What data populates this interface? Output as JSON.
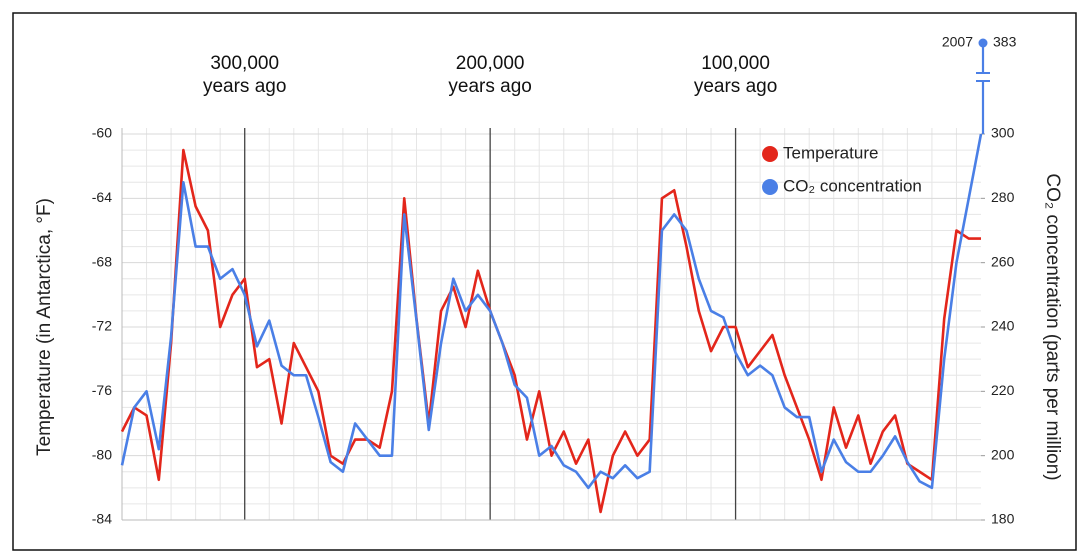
{
  "chart_data": {
    "type": "line",
    "x": [
      350000,
      345000,
      340000,
      335000,
      330000,
      325000,
      320000,
      315000,
      310000,
      305000,
      300000,
      295000,
      290000,
      285000,
      280000,
      275000,
      270000,
      265000,
      260000,
      255000,
      250000,
      245000,
      240000,
      235000,
      230000,
      225000,
      220000,
      215000,
      210000,
      205000,
      200000,
      195000,
      190000,
      185000,
      180000,
      175000,
      170000,
      165000,
      160000,
      155000,
      150000,
      145000,
      140000,
      135000,
      130000,
      125000,
      120000,
      115000,
      110000,
      105000,
      100000,
      95000,
      90000,
      85000,
      80000,
      75000,
      70000,
      65000,
      60000,
      55000,
      50000,
      45000,
      40000,
      35000,
      30000,
      25000,
      20000,
      15000,
      10000,
      5000,
      0
    ],
    "series": [
      {
        "name": "Temperature",
        "color": "#e3261b",
        "values": [
          -78.5,
          -77,
          -77.5,
          -81.5,
          -73,
          -61,
          -64.5,
          -66,
          -72,
          -70,
          -69,
          -74.5,
          -74,
          -78,
          -73,
          -74.5,
          -76,
          -80,
          -80.5,
          -79,
          -79,
          -79.5,
          -76,
          -64,
          -71.5,
          -78,
          -71,
          -69.5,
          -72,
          -68.5,
          -71,
          -73,
          -75,
          -79,
          -76,
          -80,
          -78.5,
          -80.5,
          -79,
          -83.5,
          -80,
          -78.5,
          -80,
          -79,
          -64,
          -63.5,
          -67,
          -71,
          -73.5,
          -72,
          -72,
          -74.5,
          -73.5,
          -72.5,
          -75,
          -77,
          -79,
          -81.5,
          -77,
          -79.5,
          -77.5,
          -80.5,
          -78.5,
          -77.5,
          -80.5,
          -81,
          -81.5,
          -71.5,
          -66,
          -66.5,
          -66.5
        ]
      },
      {
        "name": "CO₂ concentration",
        "color": "#4a7fe6",
        "axis": "y2",
        "values": [
          197,
          215,
          220,
          202,
          237,
          285,
          265,
          265,
          255,
          258,
          250,
          234,
          242,
          228,
          225,
          225,
          212,
          198,
          195,
          210,
          205,
          200,
          200,
          275,
          242,
          208,
          235,
          255,
          245,
          250,
          245,
          235,
          222,
          218,
          200,
          203,
          197,
          195,
          190,
          195,
          193,
          197,
          193,
          195,
          270,
          275,
          270,
          255,
          245,
          243,
          232,
          225,
          228,
          225,
          215,
          212,
          212,
          195,
          205,
          198,
          195,
          195,
          200,
          206,
          198,
          192,
          190,
          230,
          260,
          280,
          300
        ]
      }
    ],
    "xlim": [
      350000,
      0
    ],
    "xticks": [
      {
        "value": 300000,
        "label": "300,000 years ago"
      },
      {
        "value": 200000,
        "label": "200,000 years ago"
      },
      {
        "value": 100000,
        "label": "100,000 years ago"
      }
    ],
    "ylim": [
      -84,
      -60
    ],
    "yticks": [
      -84,
      -80,
      -76,
      -72,
      -68,
      -64,
      -60
    ],
    "y2lim": [
      180,
      300
    ],
    "y2ticks": [
      180,
      200,
      220,
      240,
      260,
      280,
      300
    ],
    "y_label": "Temperature (in Antarctica, °F)",
    "y2_label": "CO₂ concentration (parts per million)",
    "annotation": {
      "label": "2007",
      "value": 383
    },
    "legend": "top-right",
    "grid": true
  }
}
